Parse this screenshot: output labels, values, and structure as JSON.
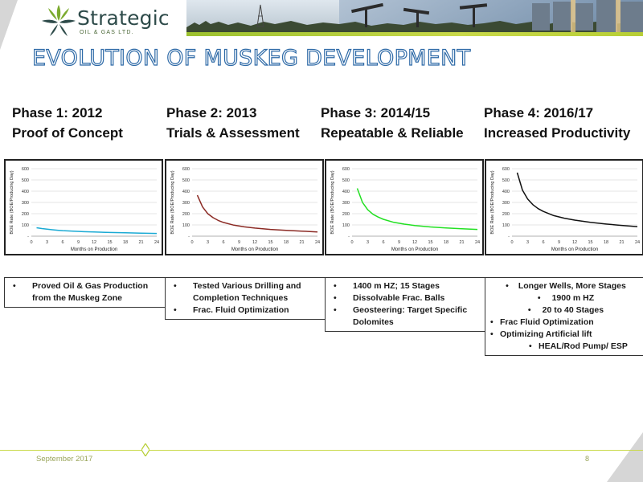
{
  "logo": {
    "name": "Strategic",
    "sub": "OIL & GAS LTD."
  },
  "title": "EVOLUTION OF MUSKEG DEVELOPMENT",
  "phases": [
    {
      "head1": "Phase 1: 2012",
      "head2": "Proof of Concept",
      "bullets": [
        {
          "text": "Proved Oil & Gas Production from the Muskeg Zone",
          "style": "normal"
        }
      ]
    },
    {
      "head1": "Phase 2: 2013",
      "head2": "Trials & Assessment",
      "bullets": [
        {
          "text": "Tested Various Drilling and Completion Techniques",
          "style": "normal"
        },
        {
          "text": "Frac. Fluid Optimization",
          "style": "normal"
        }
      ]
    },
    {
      "head1": "Phase 3: 2014/15",
      "head2": "Repeatable & Reliable",
      "bullets": [
        {
          "text": "1400 m HZ; 15 Stages",
          "style": "normal"
        },
        {
          "text": "Dissolvable Frac. Balls",
          "style": "normal"
        },
        {
          "text": "Geosteering:  Target Specific Dolomites",
          "style": "normal"
        }
      ]
    },
    {
      "head1": "Phase 4: 2016/17",
      "head2": "Increased Productivity",
      "bullets": [
        {
          "text": "Longer Wells, More Stages",
          "style": "centered"
        },
        {
          "text": "1900 m HZ",
          "style": "sub"
        },
        {
          "text": "20 to 40 Stages",
          "style": "sub"
        },
        {
          "text": "Frac Fluid Optimization",
          "style": "plain"
        },
        {
          "text": "Optimizing Artificial lift",
          "style": "plain"
        },
        {
          "text": "HEAL/Rod Pump/ ESP",
          "style": "subsub"
        }
      ]
    }
  ],
  "chart_data": [
    {
      "type": "line",
      "title": "",
      "xlabel": "Months on Production",
      "ylabel": "BOE Rate (BOE/Producing Day)",
      "xlim": [
        0,
        24
      ],
      "ylim": [
        0,
        600
      ],
      "xticks": [
        0,
        3,
        6,
        9,
        12,
        15,
        18,
        21,
        24
      ],
      "yticks": [
        100,
        200,
        300,
        400,
        500,
        600
      ],
      "grid": "horizontal",
      "series": [
        {
          "color": "#1aaad4",
          "x": [
            1,
            2,
            3,
            4,
            5,
            6,
            8,
            10,
            12,
            15,
            18,
            21,
            24
          ],
          "y": [
            75,
            68,
            62,
            57,
            53,
            49,
            44,
            40,
            37,
            33,
            30,
            27,
            24
          ]
        }
      ]
    },
    {
      "type": "line",
      "title": "",
      "xlabel": "Months on Production",
      "ylabel": "BOE Rate (BOE/Producing Day)",
      "xlim": [
        0,
        24
      ],
      "ylim": [
        0,
        600
      ],
      "xticks": [
        0,
        3,
        6,
        9,
        12,
        15,
        18,
        21,
        24
      ],
      "yticks": [
        100,
        200,
        300,
        400,
        500,
        600
      ],
      "grid": "horizontal",
      "series": [
        {
          "color": "#8b2a24",
          "x": [
            1,
            2,
            3,
            4,
            5,
            6,
            8,
            10,
            12,
            15,
            18,
            21,
            24
          ],
          "y": [
            365,
            260,
            200,
            165,
            140,
            122,
            98,
            83,
            72,
            60,
            52,
            45,
            38
          ]
        }
      ]
    },
    {
      "type": "line",
      "title": "",
      "xlabel": "Months on Production",
      "ylabel": "BOE Rate (BOE/Producing Day)",
      "xlim": [
        0,
        24
      ],
      "ylim": [
        0,
        600
      ],
      "xticks": [
        0,
        3,
        6,
        9,
        12,
        15,
        18,
        21,
        24
      ],
      "yticks": [
        100,
        200,
        300,
        400,
        500,
        600
      ],
      "grid": "horizontal",
      "series": [
        {
          "color": "#22e022",
          "x": [
            1,
            2,
            3,
            4,
            5,
            6,
            8,
            10,
            12,
            15,
            18,
            21,
            24
          ],
          "y": [
            425,
            300,
            235,
            195,
            170,
            150,
            123,
            107,
            95,
            82,
            73,
            66,
            60
          ]
        }
      ]
    },
    {
      "type": "line",
      "title": "",
      "xlabel": "Months on Production",
      "ylabel": "BOE Rate (BOE/Producing Day)",
      "xlim": [
        0,
        24
      ],
      "ylim": [
        0,
        600
      ],
      "xticks": [
        0,
        3,
        6,
        9,
        12,
        15,
        18,
        21,
        24
      ],
      "yticks": [
        100,
        200,
        300,
        400,
        500,
        600
      ],
      "grid": "horizontal",
      "series": [
        {
          "color": "#111111",
          "x": [
            1,
            2,
            3,
            4,
            5,
            6,
            8,
            10,
            12,
            15,
            18,
            21,
            24
          ],
          "y": [
            565,
            410,
            330,
            280,
            245,
            220,
            183,
            160,
            143,
            123,
            108,
            96,
            85
          ]
        }
      ]
    }
  ],
  "footer": {
    "date": "September  2017",
    "page": "8"
  }
}
